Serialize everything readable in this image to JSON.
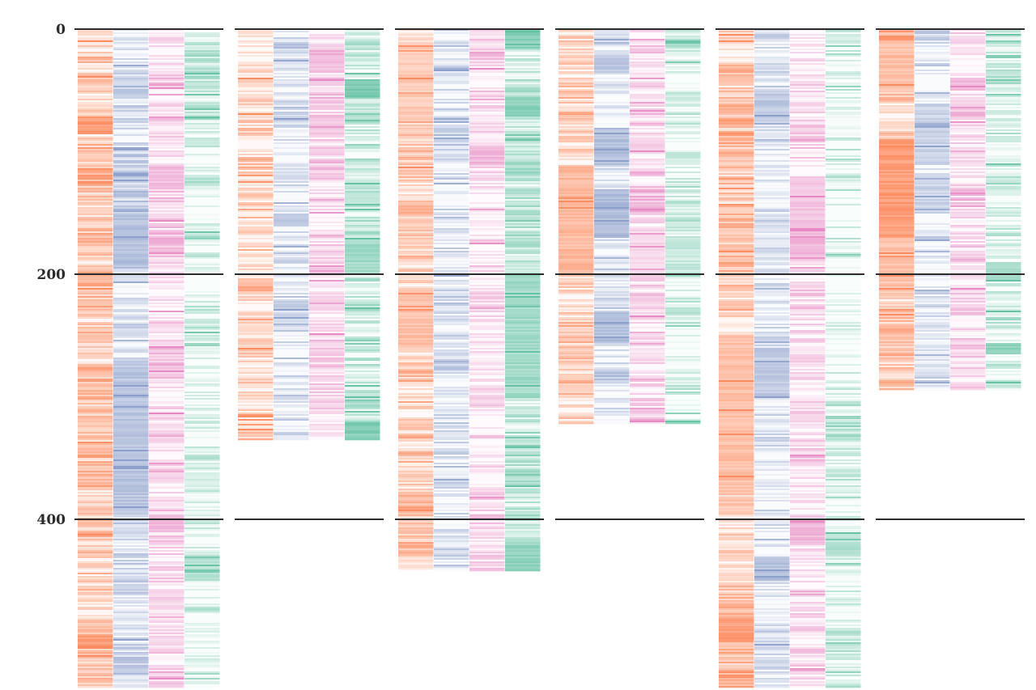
{
  "chart_data": {
    "type": "heatmap",
    "title": "",
    "xlabel": "",
    "ylabel": "",
    "y_axis": {
      "ticks": [
        0,
        200,
        400
      ],
      "ylim": [
        0,
        540
      ],
      "inverted": true,
      "grid": true
    },
    "series": [
      {
        "color": "#fc8d62"
      },
      {
        "color": "#8da0cb"
      },
      {
        "color": "#e78ac3"
      },
      {
        "color": "#66c2a5"
      }
    ],
    "panels": [
      {
        "length": 537,
        "seed": 11,
        "base": [
          0.45,
          0.3,
          0.3,
          0.15
        ],
        "blocks": [
          [
            0,
            70,
            85,
            0.85
          ],
          [
            0,
            495,
            505,
            0.85
          ],
          [
            1,
            150,
            195,
            0.65
          ],
          [
            1,
            270,
            330,
            0.6
          ],
          [
            1,
            330,
            395,
            0.6
          ],
          [
            2,
            110,
            130,
            0.55
          ],
          [
            2,
            395,
            410,
            0.6
          ],
          [
            3,
            430,
            450,
            0.45
          ]
        ]
      },
      {
        "length": 335,
        "seed": 23,
        "base": [
          0.28,
          0.18,
          0.28,
          0.3
        ],
        "blocks": [
          [
            2,
            20,
            35,
            0.55
          ],
          [
            2,
            70,
            85,
            0.5
          ],
          [
            3,
            40,
            55,
            0.85
          ],
          [
            3,
            170,
            200,
            0.6
          ],
          [
            3,
            320,
            335,
            0.8
          ],
          [
            1,
            150,
            160,
            0.55
          ]
        ]
      },
      {
        "length": 442,
        "seed": 37,
        "base": [
          0.38,
          0.18,
          0.22,
          0.4
        ],
        "blocks": [
          [
            0,
            20,
            70,
            0.45
          ],
          [
            0,
            210,
            260,
            0.55
          ],
          [
            2,
            95,
            110,
            0.6
          ],
          [
            3,
            0,
            15,
            0.75
          ],
          [
            3,
            55,
            70,
            0.75
          ],
          [
            3,
            200,
            300,
            0.6
          ],
          [
            3,
            420,
            442,
            0.7
          ]
        ]
      },
      {
        "length": 322,
        "seed": 41,
        "base": [
          0.32,
          0.25,
          0.28,
          0.1
        ],
        "blocks": [
          [
            0,
            110,
            200,
            0.6
          ],
          [
            1,
            80,
            110,
            0.65
          ],
          [
            1,
            130,
            170,
            0.7
          ],
          [
            1,
            230,
            255,
            0.65
          ],
          [
            1,
            20,
            35,
            0.55
          ],
          [
            2,
            160,
            200,
            0.35
          ],
          [
            3,
            170,
            195,
            0.35
          ]
        ]
      },
      {
        "length": 537,
        "seed": 53,
        "base": [
          0.48,
          0.18,
          0.22,
          0.12
        ],
        "blocks": [
          [
            0,
            250,
            380,
            0.55
          ],
          [
            0,
            480,
            500,
            0.85
          ],
          [
            1,
            50,
            75,
            0.55
          ],
          [
            1,
            260,
            300,
            0.55
          ],
          [
            1,
            430,
            450,
            0.65
          ],
          [
            2,
            120,
            160,
            0.5
          ],
          [
            2,
            160,
            185,
            0.6
          ],
          [
            2,
            400,
            420,
            0.6
          ],
          [
            3,
            410,
            430,
            0.45
          ]
        ]
      },
      {
        "length": 295,
        "seed": 67,
        "base": [
          0.38,
          0.22,
          0.28,
          0.18
        ],
        "blocks": [
          [
            0,
            0,
            50,
            0.55
          ],
          [
            0,
            90,
            170,
            0.85
          ],
          [
            0,
            170,
            220,
            0.5
          ],
          [
            1,
            60,
            110,
            0.45
          ],
          [
            1,
            120,
            150,
            0.45
          ],
          [
            2,
            40,
            50,
            0.6
          ],
          [
            3,
            190,
            205,
            0.6
          ],
          [
            3,
            255,
            265,
            0.7
          ]
        ]
      }
    ]
  }
}
